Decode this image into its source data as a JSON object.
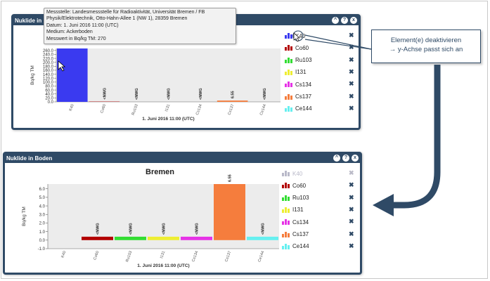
{
  "top_panel": {
    "title": "Nuklide in Bo",
    "buttons": [
      "^",
      "?",
      "x"
    ],
    "tooltip": {
      "lines": [
        "Messstelle: Landesmessstelle für Radioaktivität, Universität Bremen / FB",
        "Physik/Elektrotechnik, Otto-Hahn-Allee 1 (NW 1), 28359 Bremen",
        "Datum: 1. Juni 2016 11:00 (UTC)",
        "Medium: Ackerboden",
        "Messwert in Bq/kg TM: 270"
      ]
    }
  },
  "bottom_panel": {
    "title": "Nuklide in Boden",
    "buttons": [
      "^",
      "?",
      "x"
    ]
  },
  "callout": {
    "line1": "Element(e) deaktivieren",
    "line2": "→ y-Achse passt sich an"
  },
  "legend": [
    {
      "label": "K40",
      "color": "#3a3af0"
    },
    {
      "label": "Co60",
      "color": "#b30000"
    },
    {
      "label": "Ru103",
      "color": "#33dd33"
    },
    {
      "label": "I131",
      "color": "#eeee33"
    },
    {
      "label": "Cs134",
      "color": "#e633e6"
    },
    {
      "label": "Cs137",
      "color": "#f57d3d"
    },
    {
      "label": "Ce144",
      "color": "#66f0f0"
    }
  ],
  "legend_disabled_color": "#b9b9c9",
  "chart_data": [
    {
      "type": "bar",
      "title": "",
      "xlabel": "1. Juni 2016 11:00 (UTC)",
      "ylabel": "Bq/kg TM",
      "categories": [
        "K40",
        "Co60",
        "Ru103",
        "I131",
        "Cs134",
        "Cs137",
        "Ce144"
      ],
      "values": [
        270,
        1.5,
        0,
        0,
        0,
        6.55,
        0
      ],
      "data_labels": [
        "",
        "<NWG",
        "<NWG",
        "<NWG",
        "<NWG",
        "6.55",
        "<NWG"
      ],
      "ylim": [
        0,
        270
      ],
      "yticks": [
        "0.0",
        "20.0",
        "40.0",
        "60.0",
        "80.0",
        "100.0",
        "120.0",
        "140.0",
        "160.0",
        "180.0",
        "200.0",
        "220.0",
        "240.0",
        "260.0"
      ],
      "grid": false
    },
    {
      "type": "bar",
      "title": "Bremen",
      "xlabel": "1. Juni 2016 11:00 (UTC)",
      "ylabel": "Bq/kg TM",
      "categories": [
        "K40",
        "Co60",
        "Ru103",
        "I131",
        "Cs134",
        "Cs137",
        "Ce144"
      ],
      "values": [
        0,
        0.4,
        0.4,
        0.4,
        0.4,
        6.55,
        0.4
      ],
      "data_labels": [
        "",
        "<NWG",
        "<NWG",
        "<NWG",
        "<NWG",
        "6.55",
        "<NWG"
      ],
      "ylim": [
        -1,
        6.55
      ],
      "yticks": [
        "-1.0",
        "0.0",
        "1.0",
        "2.0",
        "3.0",
        "4.0",
        "5.0",
        "6.0"
      ],
      "grid": false
    }
  ]
}
